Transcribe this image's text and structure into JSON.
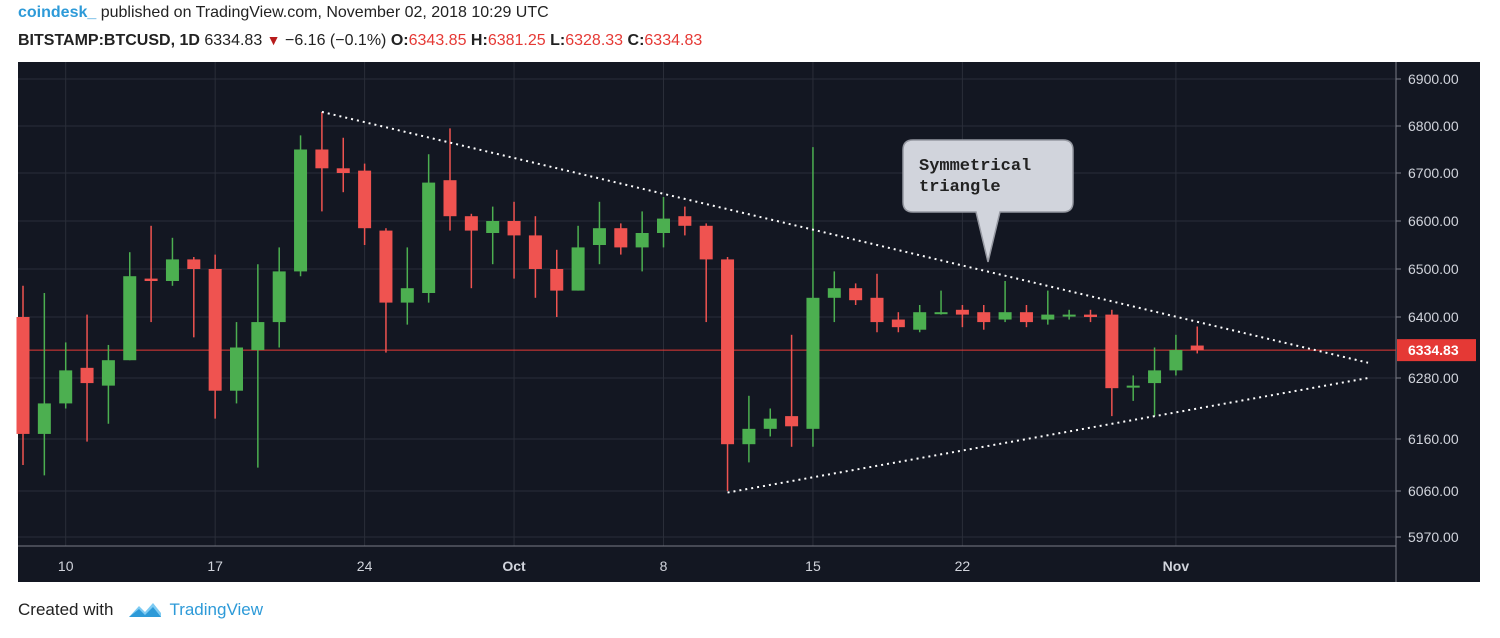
{
  "header": {
    "author": "coindesk_",
    "published": "published on TradingView.com, November 02, 2018 10:29 UTC",
    "symbol": "BITSTAMP:BTCUSD, 1D",
    "price": "6334.83",
    "change": "−6.16 (−0.1%)",
    "o_label": "O:",
    "o_value": "6343.85",
    "h_label": "H:",
    "h_value": "6381.25",
    "l_label": "L:",
    "l_value": "6328.33",
    "c_label": "C:",
    "c_value": "6334.83"
  },
  "footer": {
    "created_with": "Created with",
    "brand": "TradingView"
  },
  "colors": {
    "background": "#131722",
    "up": "#4caf50",
    "down": "#ef5350",
    "price_line": "#e53935",
    "grid": "#2a2e39"
  },
  "chart_data": {
    "type": "candlestick",
    "x_axis": {
      "ticks": [
        {
          "label": "10",
          "idx": 2
        },
        {
          "label": "17",
          "idx": 9
        },
        {
          "label": "24",
          "idx": 16
        },
        {
          "label": "Oct",
          "idx": 23
        },
        {
          "label": "8",
          "idx": 30
        },
        {
          "label": "15",
          "idx": 37
        },
        {
          "label": "22",
          "idx": 44
        },
        {
          "label": "Nov",
          "idx": 54
        }
      ]
    },
    "y_axis": {
      "ticks": [
        "6900.00",
        "6800.00",
        "6700.00",
        "6600.00",
        "6500.00",
        "6400.00",
        "6280.00",
        "6160.00",
        "6060.00",
        "5970.00"
      ],
      "current_label": "6334.83"
    },
    "annotation": "Symmetrical\ntriangle",
    "triangle": {
      "upper": [
        {
          "idx": 14,
          "price": 6830
        },
        {
          "idx": 63,
          "price": 6310
        }
      ],
      "lower": [
        {
          "idx": 33,
          "price": 6057
        },
        {
          "idx": 63,
          "price": 6280
        }
      ]
    },
    "candles": [
      {
        "o": 6400,
        "h": 6465,
        "l": 6110,
        "c": 6170
      },
      {
        "o": 6170,
        "h": 6450,
        "l": 6090,
        "c": 6230
      },
      {
        "o": 6230,
        "h": 6350,
        "l": 6220,
        "c": 6295
      },
      {
        "o": 6300,
        "h": 6405,
        "l": 6155,
        "c": 6270
      },
      {
        "o": 6265,
        "h": 6345,
        "l": 6190,
        "c": 6315
      },
      {
        "o": 6315,
        "h": 6535,
        "l": 6315,
        "c": 6485
      },
      {
        "o": 6480,
        "h": 6590,
        "l": 6390,
        "c": 6475
      },
      {
        "o": 6475,
        "h": 6565,
        "l": 6465,
        "c": 6520
      },
      {
        "o": 6520,
        "h": 6525,
        "l": 6360,
        "c": 6500
      },
      {
        "o": 6500,
        "h": 6530,
        "l": 6200,
        "c": 6255
      },
      {
        "o": 6255,
        "h": 6390,
        "l": 6230,
        "c": 6340
      },
      {
        "o": 6335,
        "h": 6510,
        "l": 6105,
        "c": 6390
      },
      {
        "o": 6390,
        "h": 6545,
        "l": 6340,
        "c": 6495
      },
      {
        "o": 6495,
        "h": 6780,
        "l": 6485,
        "c": 6750
      },
      {
        "o": 6750,
        "h": 6830,
        "l": 6620,
        "c": 6710
      },
      {
        "o": 6710,
        "h": 6775,
        "l": 6660,
        "c": 6700
      },
      {
        "o": 6705,
        "h": 6720,
        "l": 6550,
        "c": 6585
      },
      {
        "o": 6580,
        "h": 6585,
        "l": 6330,
        "c": 6430
      },
      {
        "o": 6430,
        "h": 6545,
        "l": 6385,
        "c": 6460
      },
      {
        "o": 6450,
        "h": 6740,
        "l": 6430,
        "c": 6680
      },
      {
        "o": 6685,
        "h": 6795,
        "l": 6580,
        "c": 6610
      },
      {
        "o": 6610,
        "h": 6615,
        "l": 6460,
        "c": 6580
      },
      {
        "o": 6575,
        "h": 6630,
        "l": 6510,
        "c": 6600
      },
      {
        "o": 6600,
        "h": 6640,
        "l": 6480,
        "c": 6570
      },
      {
        "o": 6570,
        "h": 6610,
        "l": 6440,
        "c": 6500
      },
      {
        "o": 6500,
        "h": 6540,
        "l": 6400,
        "c": 6455
      },
      {
        "o": 6455,
        "h": 6590,
        "l": 6455,
        "c": 6545
      },
      {
        "o": 6550,
        "h": 6640,
        "l": 6510,
        "c": 6585
      },
      {
        "o": 6585,
        "h": 6595,
        "l": 6530,
        "c": 6545
      },
      {
        "o": 6545,
        "h": 6620,
        "l": 6495,
        "c": 6575
      },
      {
        "o": 6575,
        "h": 6650,
        "l": 6545,
        "c": 6605
      },
      {
        "o": 6610,
        "h": 6630,
        "l": 6570,
        "c": 6590
      },
      {
        "o": 6590,
        "h": 6595,
        "l": 6390,
        "c": 6520
      },
      {
        "o": 6520,
        "h": 6525,
        "l": 6060,
        "c": 6150
      },
      {
        "o": 6150,
        "h": 6245,
        "l": 6115,
        "c": 6180
      },
      {
        "o": 6180,
        "h": 6220,
        "l": 6165,
        "c": 6200
      },
      {
        "o": 6205,
        "h": 6365,
        "l": 6145,
        "c": 6185
      },
      {
        "o": 6180,
        "h": 6755,
        "l": 6145,
        "c": 6440
      },
      {
        "o": 6440,
        "h": 6495,
        "l": 6390,
        "c": 6460
      },
      {
        "o": 6460,
        "h": 6470,
        "l": 6425,
        "c": 6435
      },
      {
        "o": 6440,
        "h": 6490,
        "l": 6370,
        "c": 6390
      },
      {
        "o": 6395,
        "h": 6410,
        "l": 6370,
        "c": 6380
      },
      {
        "o": 6375,
        "h": 6425,
        "l": 6370,
        "c": 6410
      },
      {
        "o": 6410,
        "h": 6455,
        "l": 6405,
        "c": 6410
      },
      {
        "o": 6415,
        "h": 6425,
        "l": 6380,
        "c": 6405
      },
      {
        "o": 6410,
        "h": 6425,
        "l": 6375,
        "c": 6390
      },
      {
        "o": 6395,
        "h": 6475,
        "l": 6390,
        "c": 6410
      },
      {
        "o": 6410,
        "h": 6425,
        "l": 6380,
        "c": 6390
      },
      {
        "o": 6395,
        "h": 6455,
        "l": 6385,
        "c": 6405
      },
      {
        "o": 6405,
        "h": 6415,
        "l": 6395,
        "c": 6405
      },
      {
        "o": 6405,
        "h": 6415,
        "l": 6390,
        "c": 6400
      },
      {
        "o": 6405,
        "h": 6415,
        "l": 6205,
        "c": 6260
      },
      {
        "o": 6265,
        "h": 6285,
        "l": 6235,
        "c": 6265
      },
      {
        "o": 6270,
        "h": 6340,
        "l": 6205,
        "c": 6295
      },
      {
        "o": 6295,
        "h": 6365,
        "l": 6285,
        "c": 6335
      },
      {
        "o": 6343.85,
        "h": 6381.25,
        "l": 6328.33,
        "c": 6334.83
      }
    ]
  }
}
